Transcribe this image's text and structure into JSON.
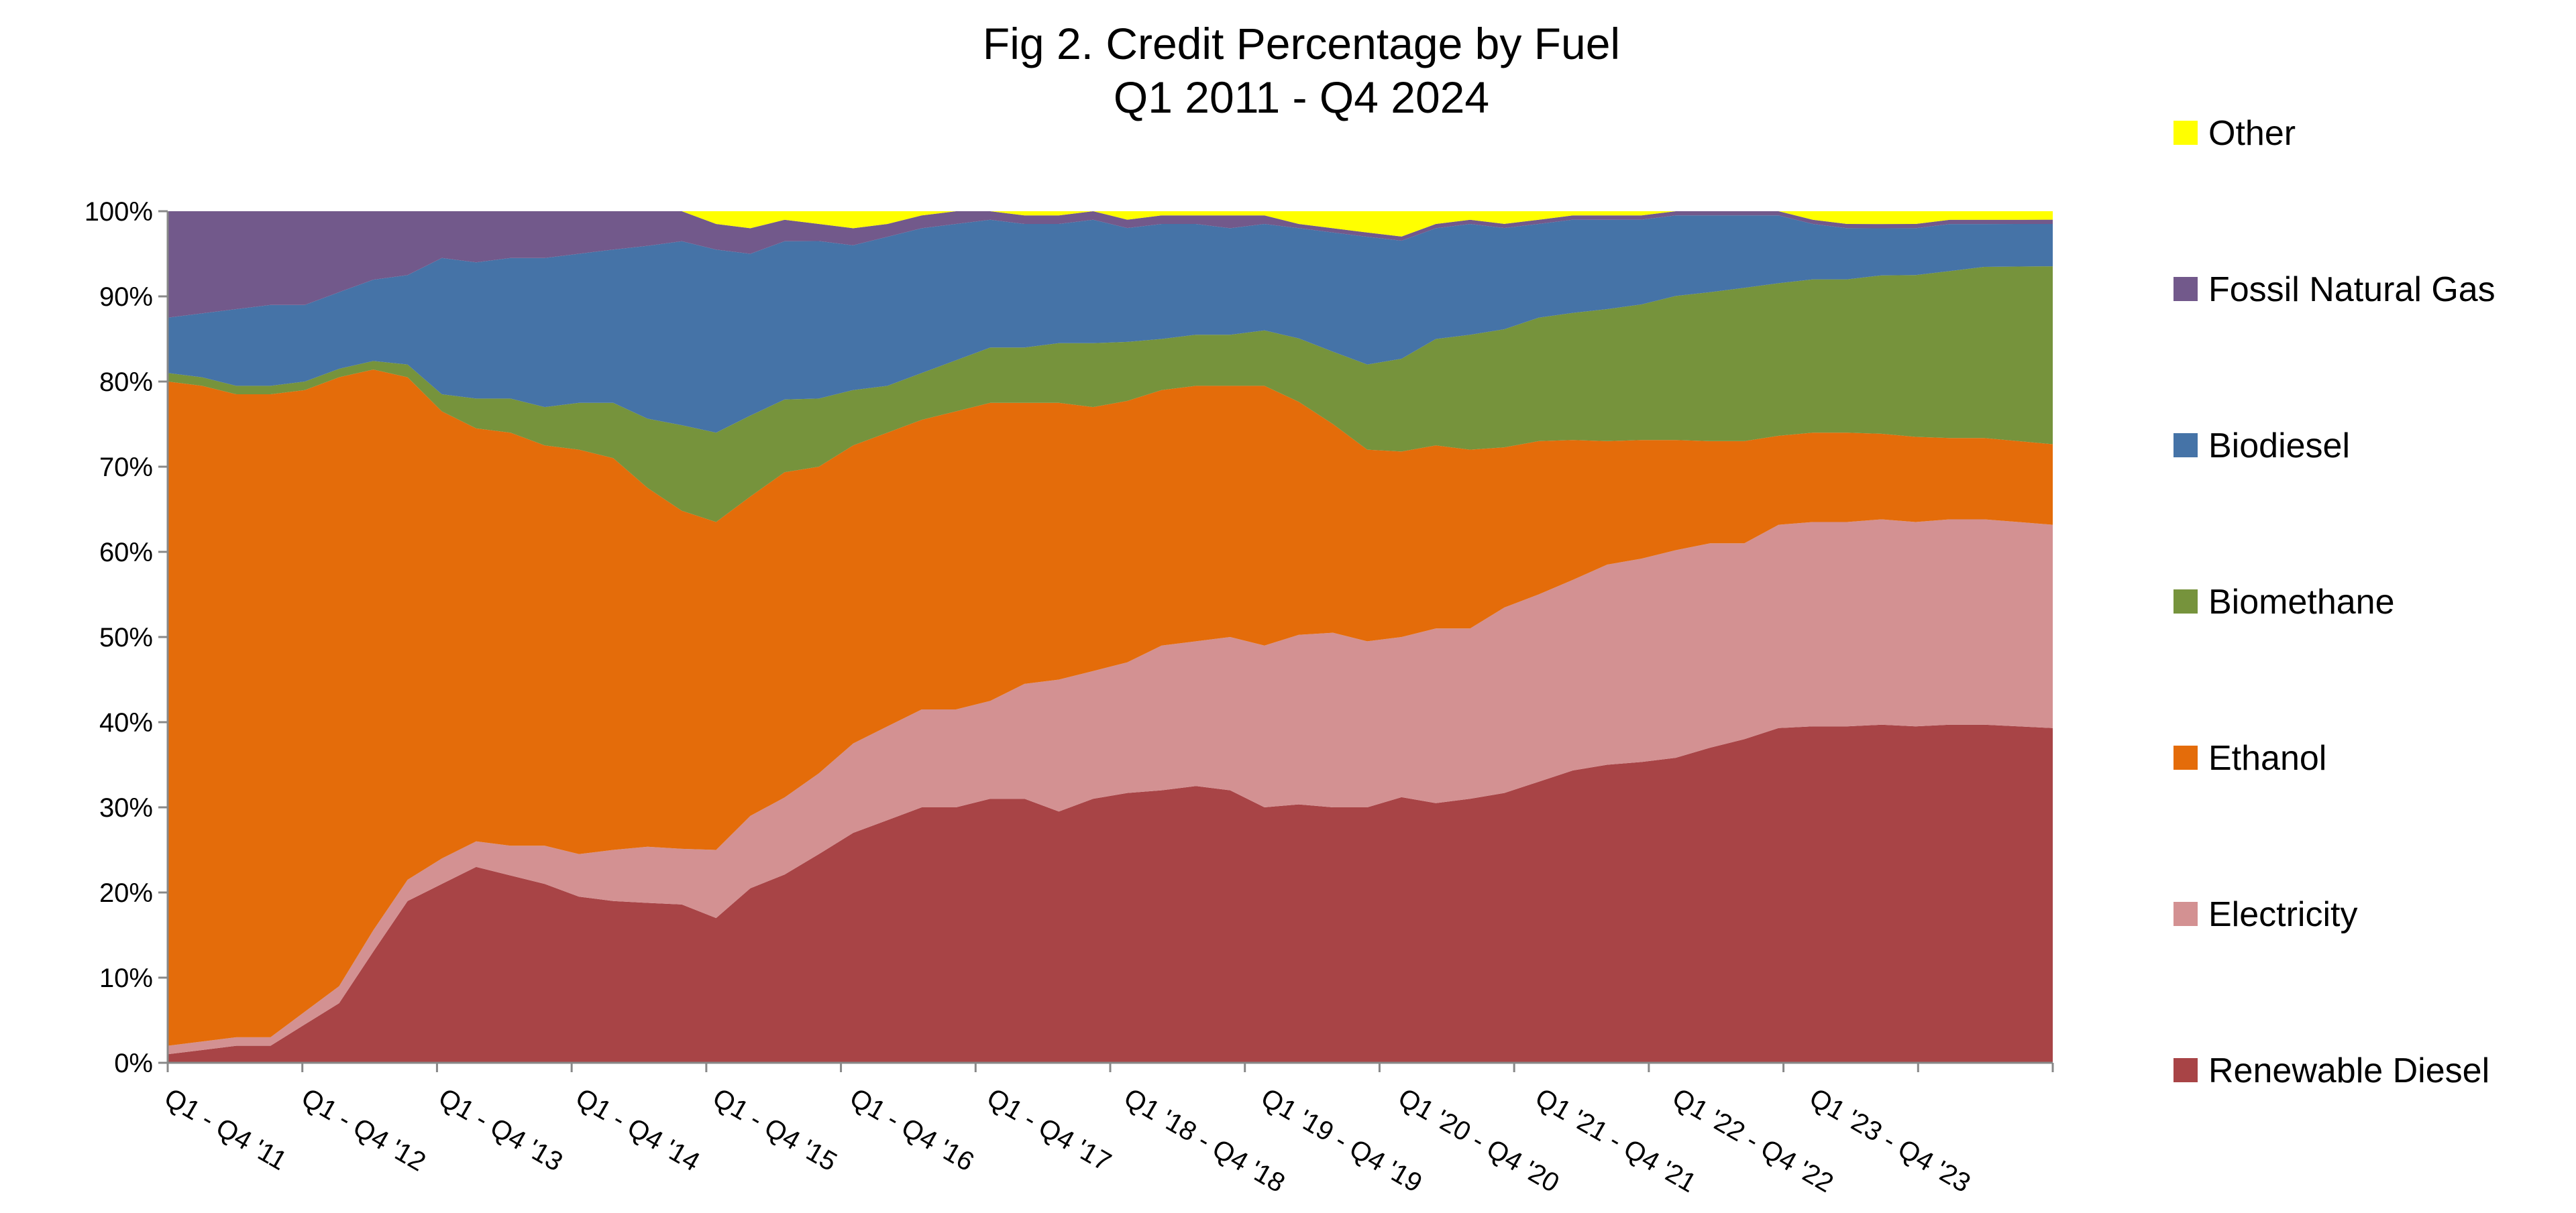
{
  "chart_data": {
    "type": "area",
    "stacked": true,
    "title": "Fig 2. Credit Percentage by Fuel",
    "subtitle": "Q1 2011   - Q4 2024",
    "xlabel": "",
    "ylabel": "",
    "ylim": [
      0,
      100
    ],
    "yticks": [
      "0%",
      "10%",
      "20%",
      "30%",
      "40%",
      "50%",
      "60%",
      "70%",
      "80%",
      "90%",
      "100%"
    ],
    "xtick_labels": [
      "Q1 - Q4 '11",
      "Q1 - Q4 '12",
      "Q1 - Q4 '13",
      "Q1 - Q4 '14",
      "Q1 - Q4 '15",
      "Q1 - Q4 '16",
      "Q1 - Q4 '17",
      "Q1 '18 - Q4 '18",
      "Q1 '19 - Q4 '19",
      "Q1 '20 - Q4 '20",
      "Q1 '21 - Q4 '21",
      "Q1 '22 - Q4 '22",
      "Q1 '23 - Q4 '23"
    ],
    "grid": false,
    "legend_position": "right",
    "x_periods": [
      "Q1 2011",
      "Q2 2011",
      "Q3 2011",
      "Q4 2011",
      "Q1 2012",
      "Q2 2012",
      "Q3 2012",
      "Q4 2012",
      "Q1 2013",
      "Q2 2013",
      "Q3 2013",
      "Q4 2013",
      "Q1 2014",
      "Q2 2014",
      "Q3 2014",
      "Q4 2014",
      "Q1 2015",
      "Q2 2015",
      "Q3 2015",
      "Q4 2015",
      "Q1 2016",
      "Q2 2016",
      "Q3 2016",
      "Q4 2016",
      "Q1 2017",
      "Q2 2017",
      "Q3 2017",
      "Q4 2017",
      "Q1 2018",
      "Q2 2018",
      "Q3 2018",
      "Q4 2018",
      "Q1 2019",
      "Q2 2019",
      "Q3 2019",
      "Q4 2019",
      "Q1 2020",
      "Q2 2020",
      "Q3 2020",
      "Q4 2020",
      "Q1 2021",
      "Q2 2021",
      "Q3 2021",
      "Q4 2021",
      "Q1 2022",
      "Q2 2022",
      "Q3 2022",
      "Q4 2022",
      "Q1 2023",
      "Q2 2023",
      "Q3 2023",
      "Q4 2023",
      "Q1 2024",
      "Q2 2024",
      "Q3 2024",
      "Q4 2024"
    ],
    "series": [
      {
        "name": "Renewable Diesel",
        "color": "#A84446",
        "values": [
          1,
          1.5,
          2,
          2,
          4.5,
          7,
          13,
          19,
          21,
          23,
          22,
          21,
          19.5,
          19,
          18.5,
          18.5,
          17,
          20.5,
          22,
          24.5,
          27,
          28.5,
          30,
          30,
          31,
          31,
          29.5,
          31,
          32,
          32,
          32.5,
          32,
          30,
          30.5,
          30,
          30,
          31.5,
          30.5,
          31,
          32,
          33,
          34.5,
          35,
          35.5,
          36,
          37,
          38,
          39.5,
          39.5,
          39.5,
          39.5,
          39.5,
          39.5,
          39.5,
          39.5,
          39.5
        ]
      },
      {
        "name": "Electricity",
        "color": "#D39192",
        "values": [
          1,
          1,
          1,
          1,
          1.5,
          2,
          2.5,
          2.5,
          3,
          3,
          3.5,
          4.5,
          5,
          6,
          6.5,
          6.5,
          8,
          8.5,
          9,
          9.5,
          10.5,
          11,
          11.5,
          11.5,
          11.5,
          13.5,
          15.5,
          15,
          15.5,
          17,
          17,
          18,
          19,
          20,
          20.5,
          19.5,
          19,
          20.5,
          20,
          22,
          22,
          22.5,
          23.5,
          24,
          24.5,
          24,
          23,
          24,
          24,
          24,
          24,
          24,
          24,
          24,
          24,
          24
        ]
      },
      {
        "name": "Ethanol",
        "color": "#E46C0A",
        "values": [
          78,
          77,
          75.5,
          75.5,
          73,
          71.5,
          65.5,
          59,
          52.5,
          48.5,
          48.5,
          47,
          47.5,
          46,
          41.5,
          39.5,
          38.5,
          37.5,
          38,
          36,
          35,
          34.5,
          34,
          35,
          35,
          33,
          32.5,
          31,
          31,
          30,
          30,
          29.5,
          30.5,
          27.5,
          24.5,
          22.5,
          22,
          21.5,
          21,
          19,
          18,
          16.5,
          14.5,
          14,
          13,
          12,
          12,
          10.5,
          10.5,
          10.5,
          10,
          10,
          9.5,
          9.5,
          9.5,
          9.5
        ]
      },
      {
        "name": "Biomethane",
        "color": "#76933C",
        "values": [
          1,
          1,
          1,
          1,
          1,
          1,
          1,
          1.5,
          2,
          3.5,
          4,
          4.5,
          5.5,
          6.5,
          8,
          10,
          10.5,
          9.5,
          8.5,
          8,
          6.5,
          5.5,
          5.5,
          6,
          6.5,
          6.5,
          7,
          7.5,
          7,
          6,
          6,
          6,
          6.5,
          7.5,
          8.5,
          10,
          11,
          12.5,
          13.5,
          14,
          14.5,
          15,
          15.5,
          16,
          17,
          17.5,
          18,
          18,
          18,
          18,
          18.5,
          19,
          19.5,
          20,
          20.5,
          21
        ]
      },
      {
        "name": "Biodiesel",
        "color": "#4573A7",
        "values": [
          6.5,
          7.5,
          9,
          9.5,
          9,
          9,
          9.5,
          10.5,
          16,
          16,
          16.5,
          17.5,
          17.5,
          18,
          20,
          21.5,
          21.5,
          19,
          18.5,
          18.5,
          17,
          17.5,
          17,
          16,
          15,
          14.5,
          14,
          14.5,
          13.5,
          13.5,
          13,
          12.5,
          12.5,
          13,
          14,
          15,
          14,
          13,
          13,
          12,
          11,
          11,
          10.5,
          10,
          9.5,
          9,
          8.5,
          8,
          6.5,
          6,
          5.5,
          5.5,
          5.5,
          5,
          5,
          5
        ]
      },
      {
        "name": "Fossil Natural Gas",
        "color": "#72598B",
        "values": [
          12.5,
          12,
          11.5,
          11,
          11,
          9.5,
          8,
          7.5,
          5.5,
          6,
          5.5,
          5.5,
          5,
          4.5,
          4,
          3.5,
          3,
          3,
          2.5,
          2,
          2,
          1.5,
          1.5,
          1.5,
          1,
          1,
          1,
          1,
          1,
          1,
          1,
          1.5,
          1,
          0.5,
          0.5,
          0.5,
          0.5,
          0.5,
          0.5,
          0.5,
          0.5,
          0.5,
          0.5,
          0.5,
          0.5,
          0.5,
          0.5,
          0.5,
          0.5,
          0.5,
          0.5,
          0.5,
          0.5,
          0.5,
          0.5,
          0.5
        ]
      },
      {
        "name": "Other",
        "color": "#FFFF00",
        "values": [
          0,
          0,
          0,
          0,
          0,
          0,
          0,
          0,
          0,
          0,
          0,
          0,
          0,
          0,
          0,
          0,
          1.5,
          2,
          1,
          1.5,
          2,
          1.5,
          0.5,
          0,
          0,
          0.5,
          0.5,
          0,
          1,
          0.5,
          0.5,
          0.5,
          0.5,
          1.5,
          2,
          2.5,
          3,
          1.5,
          1,
          1.5,
          1,
          0.5,
          0.5,
          0.5,
          0,
          0,
          0,
          0,
          1,
          1.5,
          1.5,
          1.5,
          1,
          1,
          1,
          1
        ]
      }
    ]
  }
}
